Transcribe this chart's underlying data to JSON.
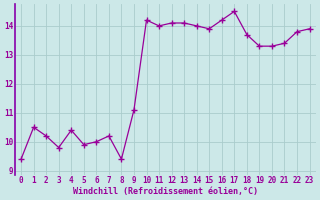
{
  "x": [
    0,
    1,
    2,
    3,
    4,
    5,
    6,
    7,
    8,
    9,
    10,
    11,
    12,
    13,
    14,
    15,
    16,
    17,
    18,
    19,
    20,
    21,
    22,
    23
  ],
  "y": [
    9.4,
    10.5,
    10.2,
    9.8,
    10.4,
    9.9,
    10.0,
    10.2,
    9.4,
    11.1,
    14.2,
    14.0,
    14.1,
    14.1,
    14.0,
    13.9,
    14.2,
    14.5,
    13.7,
    13.3,
    13.3,
    13.4,
    13.8,
    13.9
  ],
  "line_color": "#990099",
  "marker": "+",
  "marker_size": 4,
  "bg_color": "#cce8e8",
  "grid_color": "#aacccc",
  "spine_color": "#8800aa",
  "xlabel": "Windchill (Refroidissement éolien,°C)",
  "xlim": [
    -0.5,
    23.5
  ],
  "ylim": [
    8.85,
    14.75
  ],
  "yticks": [
    9,
    10,
    11,
    12,
    13,
    14
  ],
  "xticks": [
    0,
    1,
    2,
    3,
    4,
    5,
    6,
    7,
    8,
    9,
    10,
    11,
    12,
    13,
    14,
    15,
    16,
    17,
    18,
    19,
    20,
    21,
    22,
    23
  ],
  "tick_fontsize": 5.5,
  "xlabel_fontsize": 6.0,
  "line_width": 0.9
}
